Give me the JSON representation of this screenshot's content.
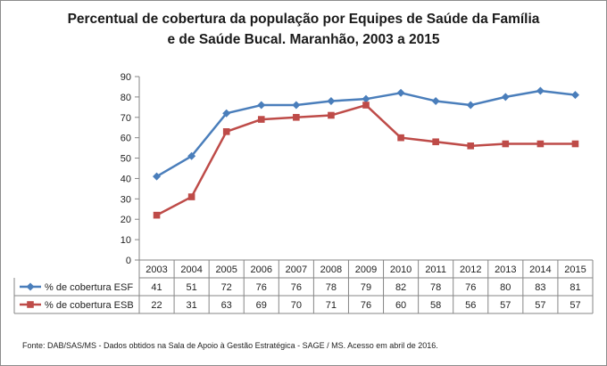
{
  "chart_data": {
    "type": "line",
    "title": [
      "Percentual de cobertura da população por Equipes de Saúde da Família",
      "e de Saúde Bucal. Maranhão, 2003 a 2015"
    ],
    "xlabel": "",
    "ylabel": "",
    "ylim": [
      0,
      90
    ],
    "yticks": [
      0,
      10,
      20,
      30,
      40,
      50,
      60,
      70,
      80,
      90
    ],
    "grid": false,
    "legend": "data-table",
    "categories": [
      "2003",
      "2004",
      "2005",
      "2006",
      "2007",
      "2008",
      "2009",
      "2010",
      "2011",
      "2012",
      "2013",
      "2014",
      "2015"
    ],
    "series": [
      {
        "name": "% de cobertura ESF",
        "color": "#4a7ebb",
        "marker": "diamond",
        "values": [
          41,
          51,
          72,
          76,
          76,
          78,
          79,
          82,
          78,
          76,
          80,
          83,
          81
        ]
      },
      {
        "name": "% de cobertura ESB",
        "color": "#be4b48",
        "marker": "square",
        "values": [
          22,
          31,
          63,
          69,
          70,
          71,
          76,
          60,
          58,
          56,
          57,
          57,
          57
        ]
      }
    ]
  },
  "source": "Fonte:  DAB/SAS/MS - Dados obtidos na Sala de Apoio à Gestão Estratégica - SAGE / MS. Acesso em  abril de  2016."
}
